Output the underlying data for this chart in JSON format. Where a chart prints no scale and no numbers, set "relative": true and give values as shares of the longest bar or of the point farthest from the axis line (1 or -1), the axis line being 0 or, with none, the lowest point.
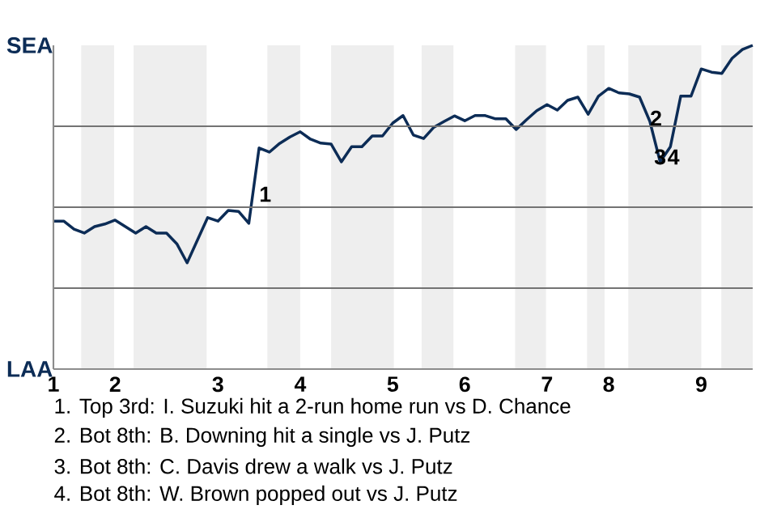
{
  "chart_data": {
    "type": "line",
    "relative": true,
    "categories": [
      "1",
      null,
      null,
      null,
      null,
      null,
      "2",
      null,
      null,
      null,
      null,
      null,
      null,
      null,
      null,
      null,
      "3",
      null,
      null,
      null,
      null,
      null,
      null,
      null,
      "4",
      null,
      null,
      null,
      null,
      null,
      null,
      null,
      null,
      "5",
      null,
      null,
      null,
      null,
      null,
      null,
      "6",
      null,
      null,
      null,
      null,
      null,
      null,
      null,
      "7",
      null,
      null,
      null,
      null,
      null,
      "8",
      null,
      null,
      null,
      null,
      null,
      null,
      null,
      null,
      "9",
      null,
      null,
      null,
      null,
      null
    ],
    "series": [
      {
        "color": "#0c2c56",
        "values": [
          0.457,
          0.457,
          0.432,
          0.42,
          0.44,
          0.448,
          0.46,
          0.44,
          0.42,
          0.44,
          0.42,
          0.42,
          0.387,
          0.328,
          0.398,
          0.468,
          0.457,
          0.49,
          0.487,
          0.45,
          0.683,
          0.67,
          0.697,
          0.717,
          0.733,
          0.71,
          0.698,
          0.695,
          0.64,
          0.687,
          0.687,
          0.72,
          0.72,
          0.76,
          0.783,
          0.723,
          0.712,
          0.747,
          0.765,
          0.782,
          0.767,
          0.783,
          0.783,
          0.773,
          0.773,
          0.74,
          0.77,
          0.798,
          0.817,
          0.8,
          0.83,
          0.84,
          0.787,
          0.843,
          0.867,
          0.853,
          0.85,
          0.84,
          0.765,
          0.64,
          0.687,
          0.843,
          0.843,
          0.927,
          0.917,
          0.913,
          0.96,
          0.987,
          1
        ]
      }
    ],
    "grid": "y",
    "annotations": [
      "SEA",
      "LAA",
      "1",
      "2",
      "3",
      "4",
      "1. Top 3rd: I. Suzuki hit a 2-run home run vs D. Chance",
      "2. Bot 8th: B. Downing hit a single vs J. Putz",
      "3. Bot 8th: C. Davis drew a walk vs J. Putz",
      "4. Bot 8th: W. Brown popped out vs J. Putz"
    ]
  }
}
